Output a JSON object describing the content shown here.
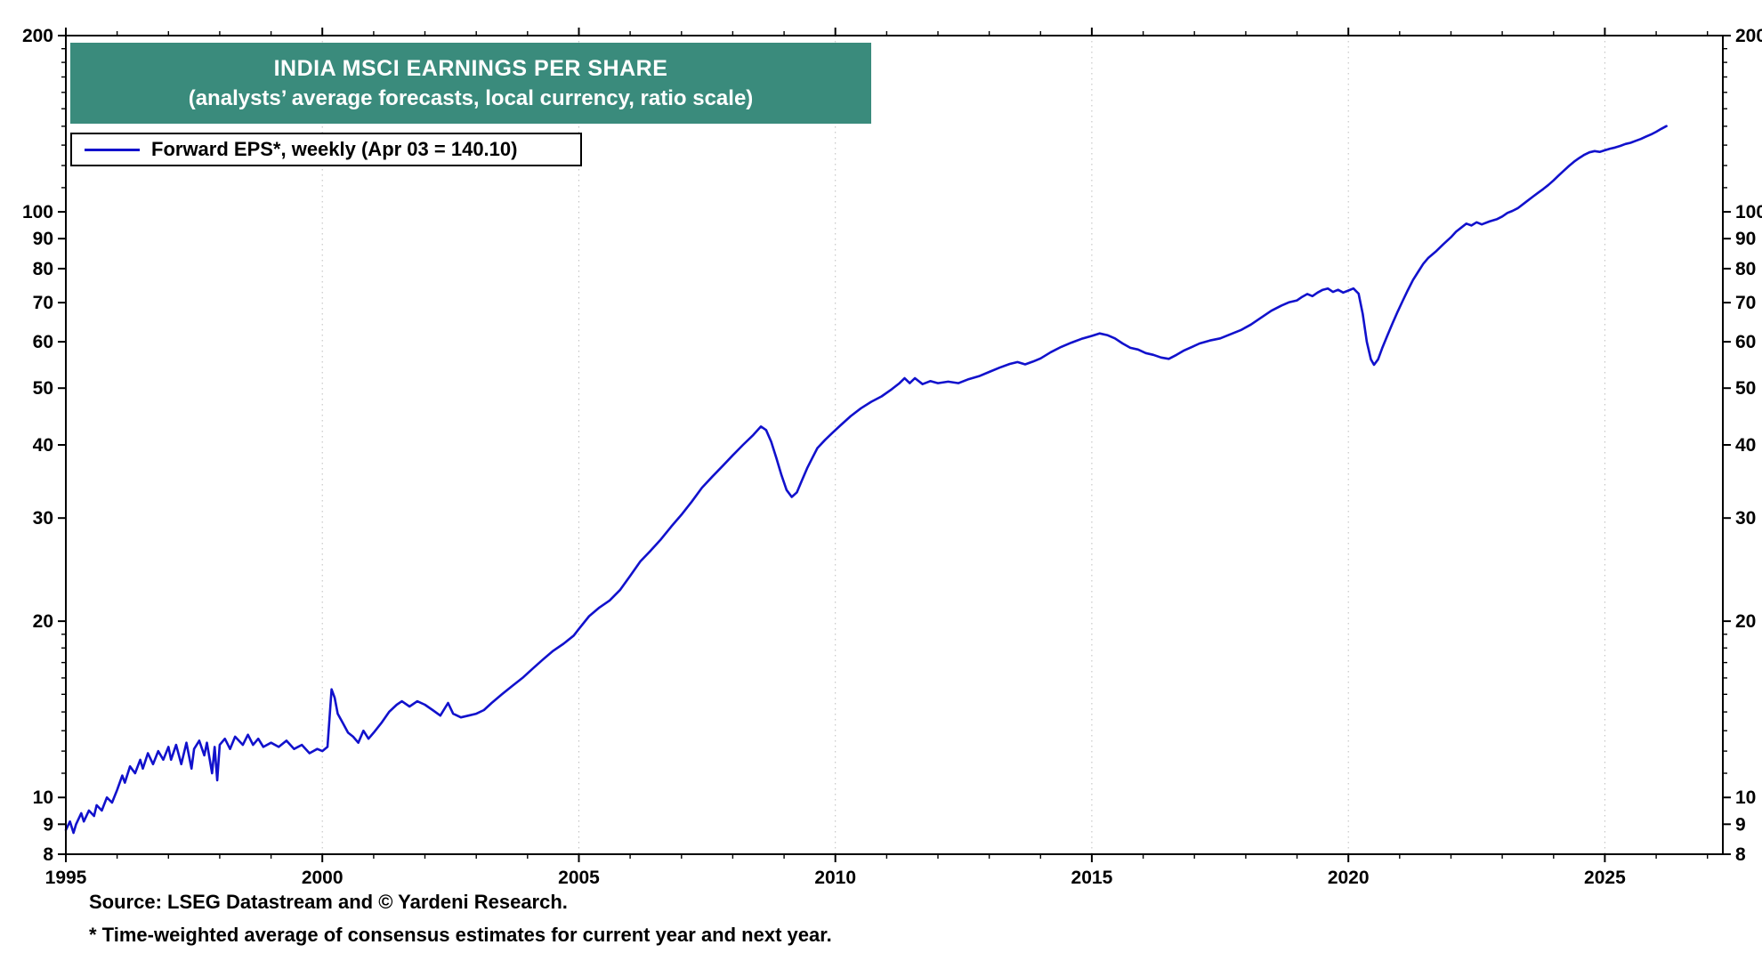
{
  "title": {
    "line1": "INDIA MSCI EARNINGS PER SHARE",
    "line2": "(analysts’ average forecasts, local currency, ratio scale)"
  },
  "legend": {
    "label": "Forward EPS*, weekly (Apr 03 = 140.10)"
  },
  "source": "Source: LSEG Datastream and © Yardeni Research.",
  "footnote": "* Time-weighted average of consensus estimates for current year and next year.",
  "colors": {
    "title_bg": "#3A8B7C",
    "title_text": "#FFFFFF",
    "line": "#1111CC",
    "grid": "#BDBDBD",
    "axis": "#000000"
  },
  "chart_data": {
    "type": "line",
    "scale_y": "log",
    "title": "INDIA MSCI EARNINGS PER SHARE",
    "subtitle": "(analysts’ average forecasts, local currency, ratio scale)",
    "xlabel": "",
    "ylabel": "",
    "xlim": [
      1995,
      2027.3
    ],
    "ylim": [
      8,
      200
    ],
    "x_ticks_major": [
      1995,
      2000,
      2005,
      2010,
      2015,
      2020,
      2025
    ],
    "x_minor_step": 1,
    "y_ticks_major": [
      8,
      9,
      10,
      20,
      30,
      40,
      50,
      60,
      70,
      80,
      90,
      100,
      200
    ],
    "y_ticks_minor": [
      11,
      12,
      13,
      14,
      15,
      16,
      17,
      18,
      19,
      110,
      120,
      130,
      140,
      150,
      160,
      170,
      180,
      190
    ],
    "gridlines_x": [
      2000,
      2005,
      2010,
      2015,
      2020,
      2025
    ],
    "grid_style": "dotted-vertical",
    "legend_position": "top-left",
    "series": [
      {
        "name": "Forward EPS*, weekly",
        "color": "#1111CC",
        "last_label": "Apr 03 = 140.10",
        "points": [
          [
            1995.0,
            8.8
          ],
          [
            1995.08,
            9.1
          ],
          [
            1995.15,
            8.7
          ],
          [
            1995.2,
            9.0
          ],
          [
            1995.3,
            9.4
          ],
          [
            1995.35,
            9.1
          ],
          [
            1995.45,
            9.5
          ],
          [
            1995.55,
            9.3
          ],
          [
            1995.6,
            9.7
          ],
          [
            1995.7,
            9.5
          ],
          [
            1995.8,
            10.0
          ],
          [
            1995.9,
            9.8
          ],
          [
            1996.0,
            10.3
          ],
          [
            1996.1,
            10.9
          ],
          [
            1996.15,
            10.6
          ],
          [
            1996.25,
            11.3
          ],
          [
            1996.35,
            11.0
          ],
          [
            1996.45,
            11.6
          ],
          [
            1996.5,
            11.2
          ],
          [
            1996.6,
            11.9
          ],
          [
            1996.7,
            11.4
          ],
          [
            1996.8,
            12.0
          ],
          [
            1996.9,
            11.6
          ],
          [
            1997.0,
            12.2
          ],
          [
            1997.05,
            11.6
          ],
          [
            1997.15,
            12.3
          ],
          [
            1997.25,
            11.4
          ],
          [
            1997.35,
            12.4
          ],
          [
            1997.45,
            11.2
          ],
          [
            1997.5,
            12.1
          ],
          [
            1997.6,
            12.5
          ],
          [
            1997.7,
            11.8
          ],
          [
            1997.75,
            12.4
          ],
          [
            1997.85,
            11.0
          ],
          [
            1997.9,
            12.2
          ],
          [
            1997.95,
            10.7
          ],
          [
            1998.0,
            12.3
          ],
          [
            1998.1,
            12.6
          ],
          [
            1998.2,
            12.1
          ],
          [
            1998.3,
            12.7
          ],
          [
            1998.45,
            12.3
          ],
          [
            1998.55,
            12.8
          ],
          [
            1998.65,
            12.3
          ],
          [
            1998.75,
            12.6
          ],
          [
            1998.85,
            12.2
          ],
          [
            1999.0,
            12.4
          ],
          [
            1999.15,
            12.2
          ],
          [
            1999.3,
            12.5
          ],
          [
            1999.45,
            12.1
          ],
          [
            1999.6,
            12.3
          ],
          [
            1999.75,
            11.9
          ],
          [
            1999.9,
            12.1
          ],
          [
            2000.0,
            12.0
          ],
          [
            2000.1,
            12.2
          ],
          [
            2000.18,
            15.3
          ],
          [
            2000.24,
            14.8
          ],
          [
            2000.3,
            13.9
          ],
          [
            2000.4,
            13.4
          ],
          [
            2000.5,
            12.9
          ],
          [
            2000.6,
            12.7
          ],
          [
            2000.7,
            12.4
          ],
          [
            2000.8,
            13.0
          ],
          [
            2000.9,
            12.6
          ],
          [
            2001.0,
            12.9
          ],
          [
            2001.15,
            13.4
          ],
          [
            2001.3,
            14.0
          ],
          [
            2001.45,
            14.4
          ],
          [
            2001.55,
            14.6
          ],
          [
            2001.7,
            14.3
          ],
          [
            2001.85,
            14.6
          ],
          [
            2002.0,
            14.4
          ],
          [
            2002.15,
            14.1
          ],
          [
            2002.3,
            13.8
          ],
          [
            2002.45,
            14.5
          ],
          [
            2002.55,
            13.9
          ],
          [
            2002.7,
            13.7
          ],
          [
            2002.85,
            13.8
          ],
          [
            2003.0,
            13.9
          ],
          [
            2003.15,
            14.1
          ],
          [
            2003.3,
            14.5
          ],
          [
            2003.5,
            15.0
          ],
          [
            2003.7,
            15.5
          ],
          [
            2003.9,
            16.0
          ],
          [
            2004.1,
            16.6
          ],
          [
            2004.3,
            17.2
          ],
          [
            2004.5,
            17.8
          ],
          [
            2004.7,
            18.3
          ],
          [
            2004.9,
            18.9
          ],
          [
            2005.0,
            19.4
          ],
          [
            2005.2,
            20.4
          ],
          [
            2005.4,
            21.1
          ],
          [
            2005.6,
            21.7
          ],
          [
            2005.8,
            22.6
          ],
          [
            2006.0,
            23.9
          ],
          [
            2006.2,
            25.3
          ],
          [
            2006.4,
            26.4
          ],
          [
            2006.6,
            27.6
          ],
          [
            2006.8,
            29.0
          ],
          [
            2007.0,
            30.4
          ],
          [
            2007.2,
            32.0
          ],
          [
            2007.4,
            33.8
          ],
          [
            2007.6,
            35.3
          ],
          [
            2007.8,
            36.8
          ],
          [
            2008.0,
            38.4
          ],
          [
            2008.2,
            40.0
          ],
          [
            2008.4,
            41.6
          ],
          [
            2008.55,
            43.0
          ],
          [
            2008.65,
            42.4
          ],
          [
            2008.75,
            40.5
          ],
          [
            2008.85,
            38.0
          ],
          [
            2008.95,
            35.5
          ],
          [
            2009.05,
            33.5
          ],
          [
            2009.15,
            32.6
          ],
          [
            2009.25,
            33.2
          ],
          [
            2009.35,
            34.8
          ],
          [
            2009.45,
            36.5
          ],
          [
            2009.55,
            38.0
          ],
          [
            2009.65,
            39.5
          ],
          [
            2009.8,
            40.8
          ],
          [
            2009.95,
            42.0
          ],
          [
            2010.1,
            43.2
          ],
          [
            2010.3,
            44.8
          ],
          [
            2010.5,
            46.2
          ],
          [
            2010.7,
            47.4
          ],
          [
            2010.9,
            48.4
          ],
          [
            2011.1,
            49.8
          ],
          [
            2011.25,
            51.0
          ],
          [
            2011.35,
            52.0
          ],
          [
            2011.45,
            51.0
          ],
          [
            2011.55,
            52.0
          ],
          [
            2011.7,
            50.8
          ],
          [
            2011.85,
            51.4
          ],
          [
            2012.0,
            51.0
          ],
          [
            2012.2,
            51.3
          ],
          [
            2012.4,
            51.0
          ],
          [
            2012.6,
            51.8
          ],
          [
            2012.8,
            52.4
          ],
          [
            2013.0,
            53.3
          ],
          [
            2013.2,
            54.2
          ],
          [
            2013.4,
            55.0
          ],
          [
            2013.55,
            55.4
          ],
          [
            2013.7,
            54.9
          ],
          [
            2013.85,
            55.5
          ],
          [
            2014.0,
            56.2
          ],
          [
            2014.2,
            57.6
          ],
          [
            2014.4,
            58.8
          ],
          [
            2014.6,
            59.8
          ],
          [
            2014.8,
            60.7
          ],
          [
            2015.0,
            61.4
          ],
          [
            2015.15,
            62.0
          ],
          [
            2015.3,
            61.6
          ],
          [
            2015.45,
            60.8
          ],
          [
            2015.6,
            59.6
          ],
          [
            2015.75,
            58.6
          ],
          [
            2015.9,
            58.2
          ],
          [
            2016.05,
            57.4
          ],
          [
            2016.2,
            57.0
          ],
          [
            2016.35,
            56.4
          ],
          [
            2016.5,
            56.1
          ],
          [
            2016.65,
            57.0
          ],
          [
            2016.8,
            58.0
          ],
          [
            2016.95,
            58.8
          ],
          [
            2017.1,
            59.6
          ],
          [
            2017.3,
            60.3
          ],
          [
            2017.5,
            60.8
          ],
          [
            2017.7,
            61.8
          ],
          [
            2017.9,
            62.8
          ],
          [
            2018.1,
            64.2
          ],
          [
            2018.3,
            66.0
          ],
          [
            2018.5,
            67.8
          ],
          [
            2018.7,
            69.2
          ],
          [
            2018.85,
            70.1
          ],
          [
            2019.0,
            70.6
          ],
          [
            2019.1,
            71.6
          ],
          [
            2019.2,
            72.4
          ],
          [
            2019.3,
            71.8
          ],
          [
            2019.4,
            72.8
          ],
          [
            2019.5,
            73.6
          ],
          [
            2019.6,
            74.0
          ],
          [
            2019.7,
            73.0
          ],
          [
            2019.8,
            73.6
          ],
          [
            2019.9,
            72.8
          ],
          [
            2020.0,
            73.4
          ],
          [
            2020.1,
            74.0
          ],
          [
            2020.2,
            72.5
          ],
          [
            2020.28,
            67.0
          ],
          [
            2020.36,
            60.0
          ],
          [
            2020.44,
            56.0
          ],
          [
            2020.5,
            54.8
          ],
          [
            2020.58,
            56.0
          ],
          [
            2020.66,
            58.5
          ],
          [
            2020.76,
            61.5
          ],
          [
            2020.86,
            64.5
          ],
          [
            2020.96,
            67.5
          ],
          [
            2021.06,
            70.5
          ],
          [
            2021.16,
            73.5
          ],
          [
            2021.26,
            76.5
          ],
          [
            2021.36,
            79.0
          ],
          [
            2021.46,
            81.5
          ],
          [
            2021.56,
            83.5
          ],
          [
            2021.7,
            85.5
          ],
          [
            2021.85,
            88.0
          ],
          [
            2022.0,
            90.5
          ],
          [
            2022.1,
            92.5
          ],
          [
            2022.2,
            94.0
          ],
          [
            2022.3,
            95.5
          ],
          [
            2022.4,
            94.8
          ],
          [
            2022.5,
            96.0
          ],
          [
            2022.6,
            95.2
          ],
          [
            2022.75,
            96.3
          ],
          [
            2022.9,
            97.2
          ],
          [
            2023.0,
            98.2
          ],
          [
            2023.1,
            99.6
          ],
          [
            2023.2,
            100.4
          ],
          [
            2023.3,
            101.4
          ],
          [
            2023.4,
            103.0
          ],
          [
            2023.5,
            104.6
          ],
          [
            2023.6,
            106.2
          ],
          [
            2023.7,
            107.8
          ],
          [
            2023.8,
            109.4
          ],
          [
            2023.9,
            111.2
          ],
          [
            2024.0,
            113.2
          ],
          [
            2024.1,
            115.4
          ],
          [
            2024.2,
            117.6
          ],
          [
            2024.3,
            119.8
          ],
          [
            2024.4,
            121.8
          ],
          [
            2024.5,
            123.6
          ],
          [
            2024.6,
            125.2
          ],
          [
            2024.7,
            126.4
          ],
          [
            2024.8,
            127.0
          ],
          [
            2024.9,
            126.6
          ],
          [
            2025.0,
            127.4
          ],
          [
            2025.1,
            128.2
          ],
          [
            2025.2,
            128.8
          ],
          [
            2025.3,
            129.6
          ],
          [
            2025.4,
            130.6
          ],
          [
            2025.5,
            131.2
          ],
          [
            2025.6,
            132.2
          ],
          [
            2025.7,
            133.2
          ],
          [
            2025.8,
            134.4
          ],
          [
            2025.9,
            135.6
          ],
          [
            2026.0,
            137.0
          ],
          [
            2026.1,
            138.6
          ],
          [
            2026.2,
            140.1
          ]
        ]
      }
    ]
  }
}
